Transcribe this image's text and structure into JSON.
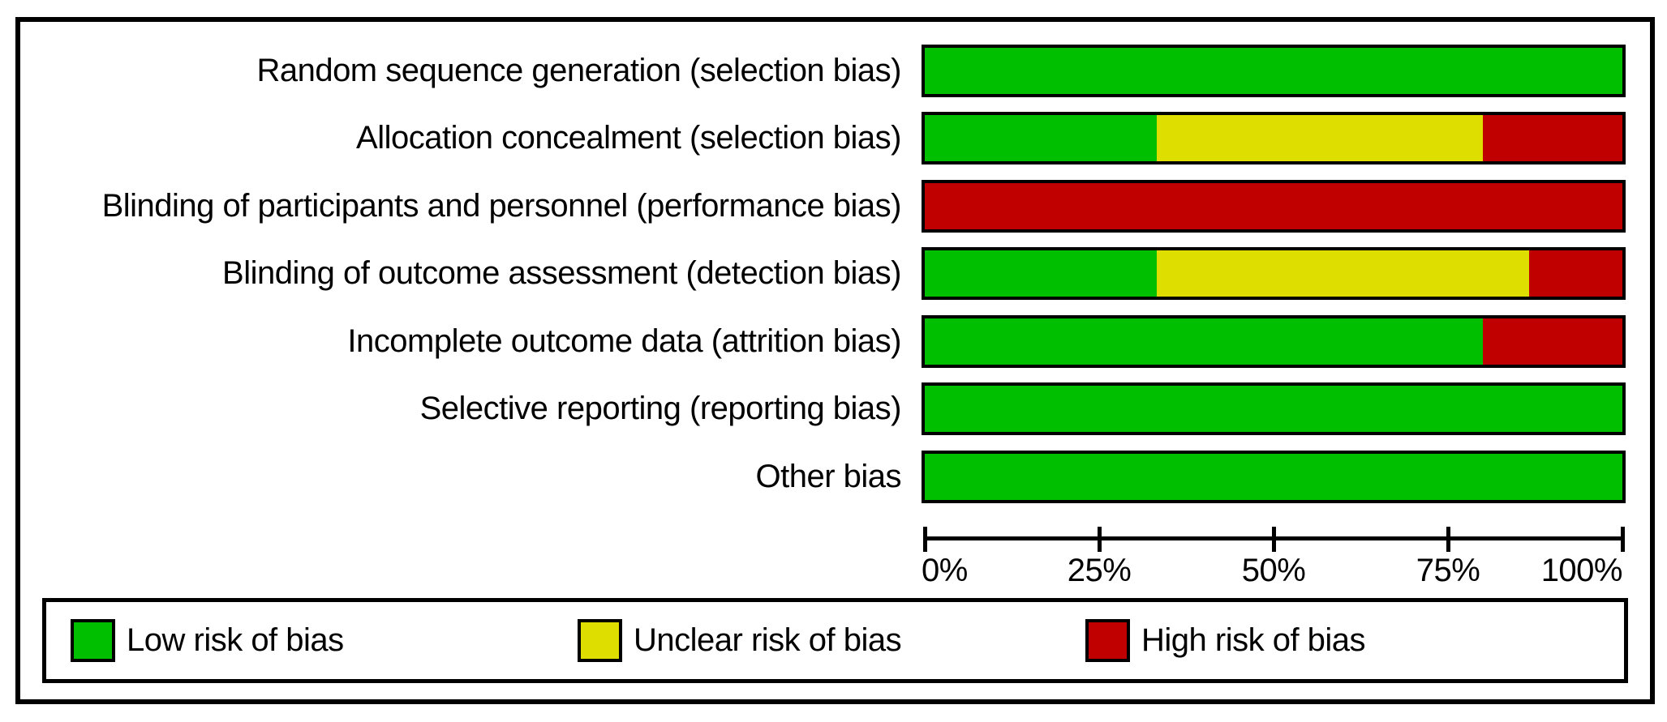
{
  "chart_data": {
    "type": "bar",
    "variant": "horizontal-stacked-percentage",
    "title": "",
    "xlabel": "",
    "ylabel": "",
    "xlim": [
      0,
      100
    ],
    "grid": false,
    "legend_position": "bottom",
    "x_ticks": [
      "0%",
      "25%",
      "50%",
      "75%",
      "100%"
    ],
    "x_tick_values": [
      0,
      25,
      50,
      75,
      100
    ],
    "categories": [
      "Random sequence generation (selection bias)",
      "Allocation concealment (selection bias)",
      "Blinding of participants and personnel (performance bias)",
      "Blinding of outcome assessment (detection bias)",
      "Incomplete outcome data (attrition bias)",
      "Selective reporting (reporting bias)",
      "Other bias"
    ],
    "series": [
      {
        "name": "Low risk of bias",
        "color": "#00BE00",
        "values": [
          100,
          33.3,
          0,
          33.3,
          80,
          100,
          100
        ]
      },
      {
        "name": "Unclear risk of bias",
        "color": "#DEDE00",
        "values": [
          0,
          46.7,
          0,
          53.3,
          0,
          0,
          0
        ]
      },
      {
        "name": "High risk of bias",
        "color": "#C00000",
        "values": [
          0,
          20,
          100,
          13.4,
          20,
          0,
          0
        ]
      }
    ]
  },
  "legend": {
    "items": [
      {
        "label": "Low risk of bias",
        "color": "#00BE00"
      },
      {
        "label": "Unclear risk of bias",
        "color": "#DEDE00"
      },
      {
        "label": "High risk of bias",
        "color": "#C00000"
      }
    ]
  },
  "colors": {
    "low": "#00BE00",
    "unclear": "#DEDE00",
    "high": "#C00000",
    "border": "#000000",
    "background": "#ffffff"
  }
}
